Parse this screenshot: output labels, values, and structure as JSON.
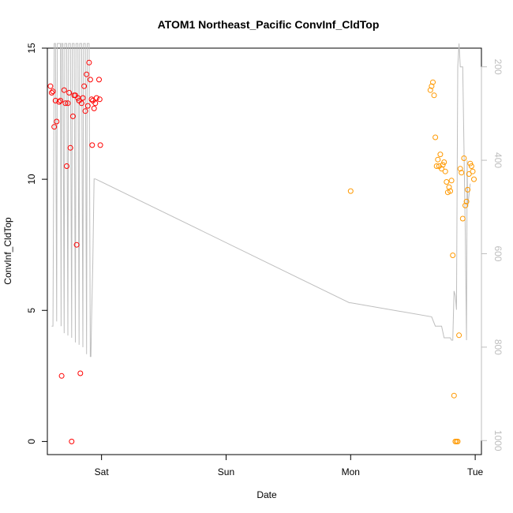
{
  "chart_data": {
    "type": "scatter",
    "title": "ATOM1 Northeast_Pacific ConvInf_CldTop",
    "xlabel": "Date",
    "ylabel": "ConvInf_CldTop",
    "x_ticks": [
      "Sat",
      "Sun",
      "Mon",
      "Tue"
    ],
    "x_tick_days": [
      1,
      2,
      3,
      4
    ],
    "xlim": [
      0.565,
      4.05
    ],
    "y_ticks": [
      0,
      5,
      10,
      15
    ],
    "ylim": [
      -0.5,
      15
    ],
    "y2_ticks": [
      200,
      400,
      600,
      800,
      1000
    ],
    "y2lim": [
      1030,
      160
    ],
    "grid": false,
    "colors": {
      "series1": "#ff0000",
      "series2": "#ff9900",
      "line": "#bebebe",
      "axis": "#000000",
      "axis2": "#bebebe"
    },
    "series": [
      {
        "color": "#ff0000",
        "x": [
          0.59,
          0.6,
          0.61,
          0.62,
          0.63,
          0.64,
          0.66,
          0.67,
          0.68,
          0.7,
          0.71,
          0.72,
          0.73,
          0.74,
          0.75,
          0.76,
          0.77,
          0.78,
          0.79,
          0.8,
          0.81,
          0.82,
          0.83,
          0.84,
          0.85,
          0.86,
          0.87,
          0.88,
          0.89,
          0.9,
          0.91,
          0.92,
          0.925,
          0.93,
          0.94,
          0.95,
          0.96,
          0.98,
          0.985,
          0.99
        ],
        "y": [
          13.55,
          13.3,
          13.35,
          12.0,
          13.0,
          12.2,
          12.95,
          13.0,
          2.5,
          13.4,
          12.9,
          10.5,
          12.9,
          13.3,
          11.2,
          0.0,
          12.4,
          13.2,
          13.2,
          7.5,
          13.1,
          13.0,
          2.6,
          12.9,
          13.1,
          13.55,
          12.6,
          14.0,
          12.8,
          14.45,
          13.8,
          13.05,
          11.3,
          13.0,
          12.7,
          12.9,
          13.1,
          13.8,
          13.05,
          11.3
        ]
      },
      {
        "color": "#ff9900",
        "x": [
          3.0,
          3.64,
          3.65,
          3.66,
          3.67,
          3.68,
          3.69,
          3.7,
          3.71,
          3.72,
          3.73,
          3.74,
          3.75,
          3.76,
          3.77,
          3.78,
          3.79,
          3.8,
          3.81,
          3.82,
          3.83,
          3.84,
          3.85,
          3.86,
          3.87,
          3.88,
          3.89,
          3.9,
          3.91,
          3.92,
          3.93,
          3.94,
          3.95,
          3.96,
          3.97,
          3.98,
          3.99
        ],
        "y": [
          9.55,
          13.4,
          13.55,
          13.7,
          13.2,
          11.6,
          10.5,
          10.75,
          10.5,
          10.95,
          10.4,
          10.55,
          10.65,
          10.3,
          9.9,
          9.5,
          9.7,
          9.55,
          9.95,
          7.1,
          1.75,
          0.0,
          0.0,
          0.0,
          4.05,
          10.4,
          10.25,
          8.5,
          10.8,
          9.0,
          9.15,
          9.6,
          10.2,
          10.6,
          10.5,
          10.3,
          10.0
        ]
      }
    ],
    "line_series": {
      "color": "#bebebe",
      "axis": "right",
      "x": [
        0.6,
        0.61,
        0.62,
        0.63,
        0.64,
        0.645,
        0.65,
        0.66,
        0.67,
        0.675,
        0.68,
        0.69,
        0.7,
        0.705,
        0.71,
        0.72,
        0.73,
        0.735,
        0.74,
        0.75,
        0.76,
        0.765,
        0.77,
        0.78,
        0.79,
        0.795,
        0.8,
        0.81,
        0.82,
        0.825,
        0.83,
        0.84,
        0.85,
        0.855,
        0.86,
        0.87,
        0.88,
        0.885,
        0.89,
        0.9,
        0.91,
        0.915,
        0.92,
        0.93,
        0.94,
        0.95,
        2.99,
        3.0,
        3.65,
        3.68,
        3.73,
        3.75,
        3.8,
        3.81,
        3.82,
        3.83,
        3.84,
        3.85,
        3.86,
        3.87,
        3.88,
        3.9,
        3.92,
        3.93,
        3.935,
        3.94,
        3.96
      ],
      "y": [
        755,
        755,
        150,
        150,
        745,
        150,
        150,
        150,
        150,
        755,
        150,
        150,
        770,
        150,
        150,
        150,
        775,
        150,
        150,
        150,
        780,
        150,
        150,
        150,
        790,
        150,
        150,
        150,
        795,
        150,
        150,
        150,
        800,
        150,
        150,
        150,
        815,
        150,
        150,
        150,
        820,
        820,
        740,
        620,
        440,
        440,
        705,
        705,
        735,
        755,
        755,
        780,
        780,
        785,
        785,
        680,
        690,
        720,
        200,
        150,
        200,
        200,
        550,
        785,
        400,
        500,
        450
      ]
    }
  }
}
